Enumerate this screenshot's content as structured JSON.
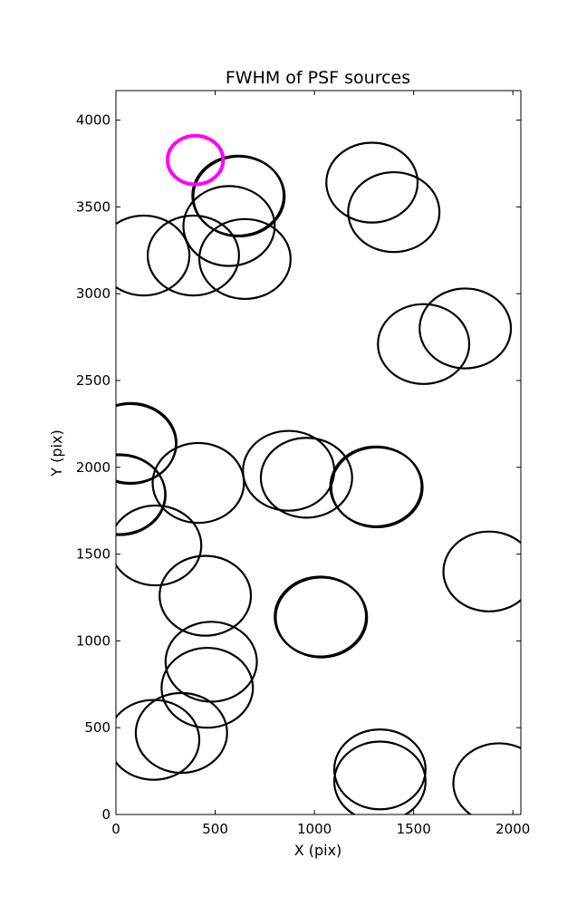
{
  "chart_data": {
    "type": "scatter",
    "title": "FWHM of PSF sources",
    "xlabel": "X (pix)",
    "ylabel": "Y (pix)",
    "xlim": [
      0,
      2040
    ],
    "ylim": [
      0,
      4170
    ],
    "xticks": [
      0,
      500,
      1000,
      1500,
      2000
    ],
    "yticks": [
      0,
      500,
      1000,
      1500,
      2000,
      2500,
      3000,
      3500,
      4000
    ],
    "grid": false,
    "marker": "open circle, radius in data units",
    "series": [
      {
        "color": "#000000",
        "radius": 230,
        "points": [
          {
            "x": 620,
            "y": 3560
          },
          {
            "x": 615,
            "y": 3565
          },
          {
            "x": 570,
            "y": 3390
          },
          {
            "x": 140,
            "y": 3220
          },
          {
            "x": 390,
            "y": 3220
          },
          {
            "x": 650,
            "y": 3200
          },
          {
            "x": 1290,
            "y": 3640
          },
          {
            "x": 1400,
            "y": 3470
          },
          {
            "x": 1550,
            "y": 2710
          },
          {
            "x": 1760,
            "y": 2800
          },
          {
            "x": 75,
            "y": 2140
          },
          {
            "x": 72,
            "y": 2135
          },
          {
            "x": 20,
            "y": 1840
          },
          {
            "x": 18,
            "y": 1845
          },
          {
            "x": 415,
            "y": 1910
          },
          {
            "x": 870,
            "y": 1980
          },
          {
            "x": 960,
            "y": 1940
          },
          {
            "x": 1310,
            "y": 1890
          },
          {
            "x": 1315,
            "y": 1885
          },
          {
            "x": 200,
            "y": 1550
          },
          {
            "x": 450,
            "y": 1260
          },
          {
            "x": 1880,
            "y": 1400
          },
          {
            "x": 1030,
            "y": 1140
          },
          {
            "x": 1035,
            "y": 1135
          },
          {
            "x": 480,
            "y": 880
          },
          {
            "x": 460,
            "y": 730
          },
          {
            "x": 190,
            "y": 430
          },
          {
            "x": 330,
            "y": 470
          },
          {
            "x": 1330,
            "y": 260
          },
          {
            "x": 1330,
            "y": 190
          },
          {
            "x": 1930,
            "y": 180
          }
        ]
      },
      {
        "color": "#ff00ff",
        "radius": 140,
        "points": [
          {
            "x": 400,
            "y": 3770
          }
        ]
      }
    ]
  }
}
